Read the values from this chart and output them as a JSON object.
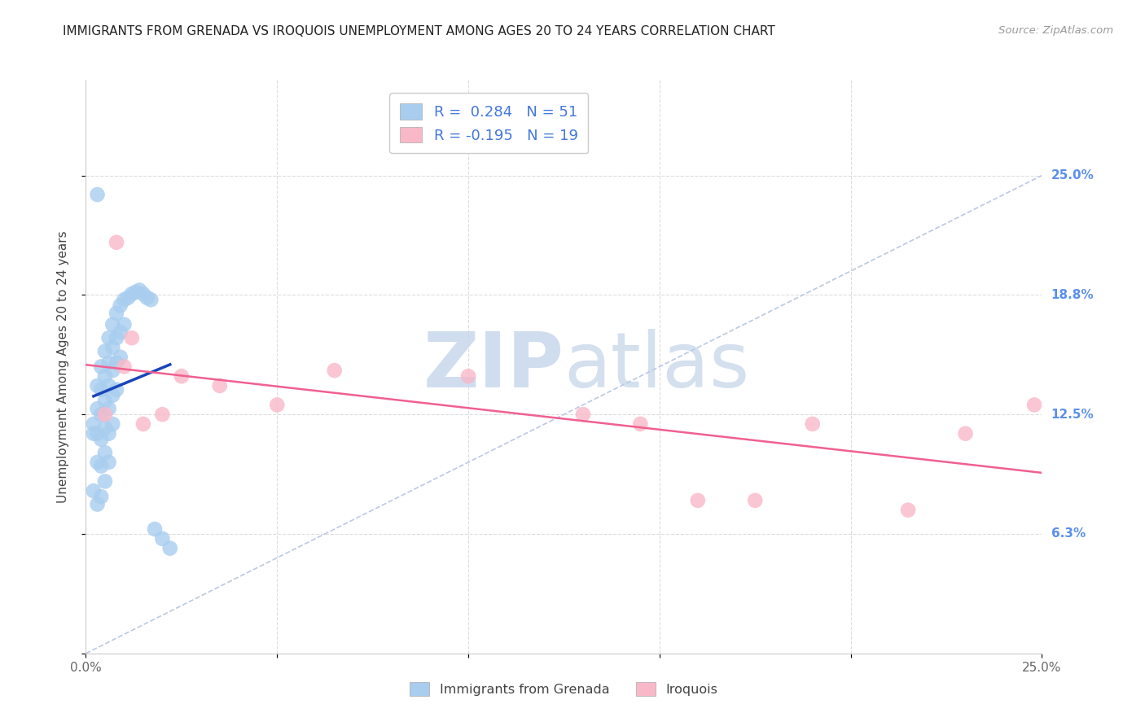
{
  "title": "IMMIGRANTS FROM GRENADA VS IROQUOIS UNEMPLOYMENT AMONG AGES 20 TO 24 YEARS CORRELATION CHART",
  "source": "Source: ZipAtlas.com",
  "ylabel": "Unemployment Among Ages 20 to 24 years",
  "xlim": [
    0.0,
    0.25
  ],
  "ylim": [
    0.0,
    0.3
  ],
  "grenada_R": 0.284,
  "grenada_N": 51,
  "iroquois_R": -0.195,
  "iroquois_N": 19,
  "grenada_color": "#A8CDEF",
  "iroquois_color": "#F9B8C8",
  "grenada_line_color": "#1A44BB",
  "iroquois_line_color": "#F06090",
  "diagonal_color": "#AABBDD",
  "background_color": "#FFFFFF",
  "grid_color": "#DDDDDD",
  "title_color": "#222222",
  "label_color": "#5B8FEE",
  "watermark_color": "#D8E4F0",
  "legend_text_color": "#4477DD",
  "grenada_x": [
    0.002,
    0.002,
    0.002,
    0.003,
    0.003,
    0.003,
    0.003,
    0.003,
    0.004,
    0.004,
    0.004,
    0.004,
    0.004,
    0.004,
    0.005,
    0.005,
    0.005,
    0.005,
    0.005,
    0.005,
    0.006,
    0.006,
    0.006,
    0.006,
    0.006,
    0.006,
    0.007,
    0.007,
    0.007,
    0.007,
    0.007,
    0.008,
    0.008,
    0.008,
    0.008,
    0.009,
    0.009,
    0.009,
    0.01,
    0.01,
    0.011,
    0.012,
    0.013,
    0.014,
    0.015,
    0.016,
    0.017,
    0.018,
    0.02,
    0.022,
    0.003
  ],
  "grenada_y": [
    0.12,
    0.115,
    0.085,
    0.14,
    0.128,
    0.115,
    0.1,
    0.078,
    0.15,
    0.138,
    0.125,
    0.112,
    0.098,
    0.082,
    0.158,
    0.145,
    0.132,
    0.118,
    0.105,
    0.09,
    0.165,
    0.152,
    0.14,
    0.128,
    0.115,
    0.1,
    0.172,
    0.16,
    0.148,
    0.135,
    0.12,
    0.178,
    0.165,
    0.152,
    0.138,
    0.182,
    0.168,
    0.155,
    0.185,
    0.172,
    0.186,
    0.188,
    0.189,
    0.19,
    0.188,
    0.186,
    0.185,
    0.065,
    0.06,
    0.055,
    0.24
  ],
  "iroquois_x": [
    0.005,
    0.008,
    0.01,
    0.012,
    0.015,
    0.02,
    0.025,
    0.035,
    0.05,
    0.065,
    0.1,
    0.13,
    0.145,
    0.16,
    0.175,
    0.19,
    0.215,
    0.23,
    0.248
  ],
  "iroquois_y": [
    0.125,
    0.215,
    0.15,
    0.165,
    0.12,
    0.125,
    0.145,
    0.14,
    0.13,
    0.148,
    0.145,
    0.125,
    0.12,
    0.08,
    0.08,
    0.12,
    0.075,
    0.115,
    0.13
  ],
  "ytick_vals": [
    0.0,
    0.0625,
    0.125,
    0.1875,
    0.25
  ],
  "xtick_vals": [
    0.0,
    0.05,
    0.1,
    0.15,
    0.2,
    0.25
  ]
}
